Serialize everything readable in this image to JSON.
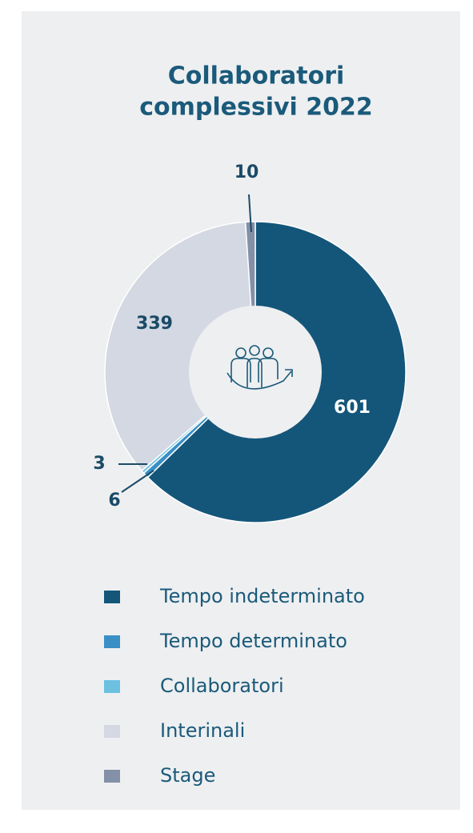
{
  "chart_data": {
    "type": "donut",
    "title": [
      "Collaboratori",
      "complessivi 2022"
    ],
    "categories": [
      "Tempo indeterminato",
      "Tempo determinato",
      "Collaboratori",
      "Interinali",
      "Stage"
    ],
    "values": [
      601,
      6,
      3,
      339,
      10
    ],
    "colors": [
      "#14567a",
      "#3a8fc4",
      "#6cc1e0",
      "#d3d8e2",
      "#8390a8"
    ],
    "legend": "bottom"
  }
}
